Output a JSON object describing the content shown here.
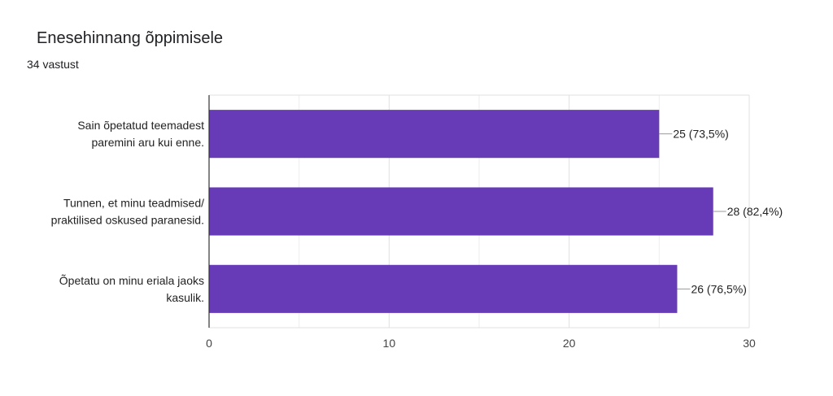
{
  "title": "Enesehinnang õppimisele",
  "subtitle": "34 vastust",
  "chart_data": {
    "type": "bar",
    "orientation": "horizontal",
    "categories": [
      [
        "Sain õpetatud teemadest",
        "paremini aru kui enne."
      ],
      [
        "Tunnen, et minu teadmised/",
        "praktilised oskused paranesid."
      ],
      [
        "Õpetatu on minu eriala jaoks",
        "kasulik."
      ]
    ],
    "values": [
      25,
      28,
      26
    ],
    "data_labels": [
      "25 (73,5%)",
      "28 (82,4%)",
      "26 (76,5%)"
    ],
    "xlim": [
      0,
      30
    ],
    "xticks": [
      "0",
      "10",
      "20",
      "30"
    ],
    "grid": true,
    "bar_color": "#673AB7"
  }
}
